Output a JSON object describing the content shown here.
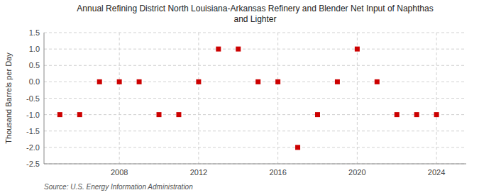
{
  "chart_data": {
    "type": "scatter",
    "title": "Annual Refining District North Louisiana-Arkansas Refinery and Blender Net Input of Naphthas\nand Lighter",
    "ylabel": "Thousand Barrels per Day",
    "source": "Source: U.S. Energy Information Administration",
    "x": [
      2005,
      2006,
      2007,
      2008,
      2009,
      2010,
      2011,
      2012,
      2013,
      2014,
      2015,
      2016,
      2017,
      2018,
      2019,
      2020,
      2021,
      2022,
      2023,
      2024
    ],
    "values": [
      -1,
      -1,
      0,
      0,
      0,
      -1,
      -1,
      0,
      1,
      1,
      0,
      0,
      -2,
      -1,
      0,
      1,
      0,
      -1,
      -1,
      -1
    ],
    "color": "#cc0000",
    "marker": "square",
    "xlim": [
      2004.2,
      2025.5
    ],
    "xticks": [
      2008,
      2012,
      2016,
      2020,
      2024
    ],
    "ylim": [
      -2.5,
      1.5
    ],
    "yticks": [
      -2.5,
      {
        "value": -2.0,
        "label": "-2.0"
      },
      -1.5,
      {
        "value": -1.0,
        "label": "-1.0"
      },
      -0.5,
      {
        "value": 0.0,
        "label": "0.0"
      },
      0.5,
      {
        "value": 1.0,
        "label": "1.0"
      },
      1.5
    ],
    "grid": true
  }
}
